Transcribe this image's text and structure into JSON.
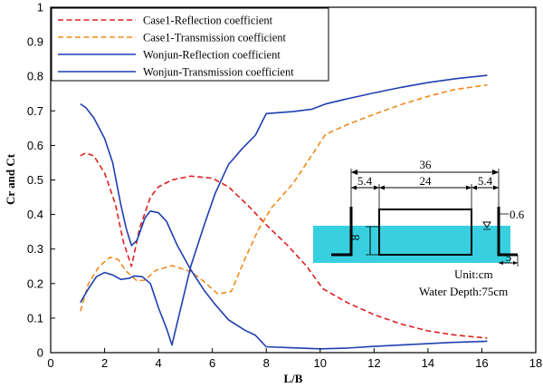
{
  "chart_data": {
    "type": "line",
    "xlabel": "L/B",
    "ylabel": "Cr and Ct",
    "xlim": [
      0,
      18
    ],
    "ylim": [
      0,
      1
    ],
    "x_ticks": [
      0,
      2,
      4,
      6,
      8,
      10,
      12,
      14,
      16,
      18
    ],
    "y_ticks": [
      0,
      0.1,
      0.2,
      0.3,
      0.4,
      0.5,
      0.6,
      0.7,
      0.8,
      0.9,
      1
    ],
    "x_tick_labels": [
      "0",
      "2",
      "4",
      "6",
      "8",
      "10",
      "12",
      "14",
      "16",
      "18"
    ],
    "y_tick_labels": [
      "0",
      "0.1",
      "0.2",
      "0.3",
      "0.4",
      "0.5",
      "0.6",
      "0.7",
      "0.8",
      "0.9",
      "1"
    ],
    "grid": false,
    "legend_position": "top-left",
    "series": [
      {
        "name": "Case1-Reflection coefficient",
        "color": "#e02020",
        "style": "dashed",
        "points": [
          [
            1.1,
            0.57
          ],
          [
            1.3,
            0.578
          ],
          [
            1.6,
            0.57
          ],
          [
            2.0,
            0.52
          ],
          [
            2.4,
            0.43
          ],
          [
            2.7,
            0.32
          ],
          [
            3.0,
            0.25
          ],
          [
            3.3,
            0.36
          ],
          [
            3.7,
            0.45
          ],
          [
            4.0,
            0.48
          ],
          [
            4.5,
            0.5
          ],
          [
            5.2,
            0.511
          ],
          [
            6.0,
            0.505
          ],
          [
            6.6,
            0.48
          ],
          [
            7.4,
            0.42
          ],
          [
            8.0,
            0.37
          ],
          [
            8.8,
            0.31
          ],
          [
            9.5,
            0.25
          ],
          [
            10.1,
            0.185
          ],
          [
            11,
            0.145
          ],
          [
            12,
            0.11
          ],
          [
            13,
            0.083
          ],
          [
            14,
            0.063
          ],
          [
            15,
            0.051
          ],
          [
            16.2,
            0.042
          ]
        ]
      },
      {
        "name": "Case1-Transmission coefficient",
        "color": "#f08a1c",
        "style": "dashed",
        "points": [
          [
            1.1,
            0.12
          ],
          [
            1.4,
            0.2
          ],
          [
            1.8,
            0.25
          ],
          [
            2.2,
            0.276
          ],
          [
            2.5,
            0.27
          ],
          [
            2.8,
            0.236
          ],
          [
            3.2,
            0.208
          ],
          [
            3.5,
            0.21
          ],
          [
            3.9,
            0.238
          ],
          [
            4.5,
            0.252
          ],
          [
            5.2,
            0.235
          ],
          [
            5.7,
            0.205
          ],
          [
            6.2,
            0.17
          ],
          [
            6.7,
            0.177
          ],
          [
            7.2,
            0.27
          ],
          [
            7.7,
            0.355
          ],
          [
            8.2,
            0.42
          ],
          [
            9.0,
            0.49
          ],
          [
            10.2,
            0.632
          ],
          [
            11,
            0.66
          ],
          [
            12,
            0.69
          ],
          [
            13,
            0.718
          ],
          [
            14,
            0.742
          ],
          [
            15,
            0.762
          ],
          [
            16.2,
            0.775
          ]
        ]
      },
      {
        "name": "Wonjun-Reflection coefficient",
        "color": "#1f3fb0",
        "style": "solid",
        "points": [
          [
            1.1,
            0.72
          ],
          [
            1.3,
            0.71
          ],
          [
            1.6,
            0.68
          ],
          [
            2.0,
            0.62
          ],
          [
            2.3,
            0.55
          ],
          [
            2.6,
            0.43
          ],
          [
            2.8,
            0.36
          ],
          [
            3.0,
            0.31
          ],
          [
            3.2,
            0.325
          ],
          [
            3.5,
            0.39
          ],
          [
            3.7,
            0.41
          ],
          [
            4.0,
            0.405
          ],
          [
            4.3,
            0.38
          ],
          [
            4.7,
            0.31
          ],
          [
            5.2,
            0.24
          ],
          [
            5.7,
            0.18
          ],
          [
            6.1,
            0.14
          ],
          [
            6.6,
            0.095
          ],
          [
            7.2,
            0.065
          ],
          [
            7.6,
            0.05
          ],
          [
            8.0,
            0.017
          ],
          [
            9,
            0.014
          ],
          [
            10,
            0.011
          ],
          [
            11,
            0.013
          ],
          [
            12,
            0.018
          ],
          [
            13,
            0.022
          ],
          [
            14,
            0.026
          ],
          [
            15,
            0.03
          ],
          [
            16.2,
            0.033
          ]
        ]
      },
      {
        "name": "Wonjun-Transmission coefficient",
        "color": "#1f3fb0",
        "style": "solid",
        "points": [
          [
            1.1,
            0.145
          ],
          [
            1.4,
            0.185
          ],
          [
            1.7,
            0.22
          ],
          [
            2.0,
            0.232
          ],
          [
            2.3,
            0.225
          ],
          [
            2.6,
            0.212
          ],
          [
            2.9,
            0.215
          ],
          [
            3.1,
            0.222
          ],
          [
            3.4,
            0.22
          ],
          [
            3.7,
            0.2
          ],
          [
            4.0,
            0.13
          ],
          [
            4.3,
            0.07
          ],
          [
            4.5,
            0.022
          ],
          [
            4.8,
            0.12
          ],
          [
            5.2,
            0.25
          ],
          [
            5.7,
            0.37
          ],
          [
            6.1,
            0.46
          ],
          [
            6.6,
            0.545
          ],
          [
            7.1,
            0.59
          ],
          [
            7.6,
            0.63
          ],
          [
            8.0,
            0.692
          ],
          [
            9,
            0.698
          ],
          [
            9.7,
            0.705
          ],
          [
            10.2,
            0.72
          ],
          [
            11,
            0.735
          ],
          [
            12,
            0.752
          ],
          [
            13,
            0.768
          ],
          [
            14,
            0.782
          ],
          [
            15,
            0.793
          ],
          [
            16.2,
            0.803
          ]
        ]
      }
    ],
    "inset": {
      "total_width": "36",
      "gap_left": "5.4",
      "box_width": "24",
      "gap_right": "5.4",
      "depth": "8",
      "freeboard": "0.6",
      "foot": "5",
      "unit": "Unit:cm",
      "water_depth": "Water Depth:75cm",
      "water_color": "#38d0e0"
    }
  }
}
